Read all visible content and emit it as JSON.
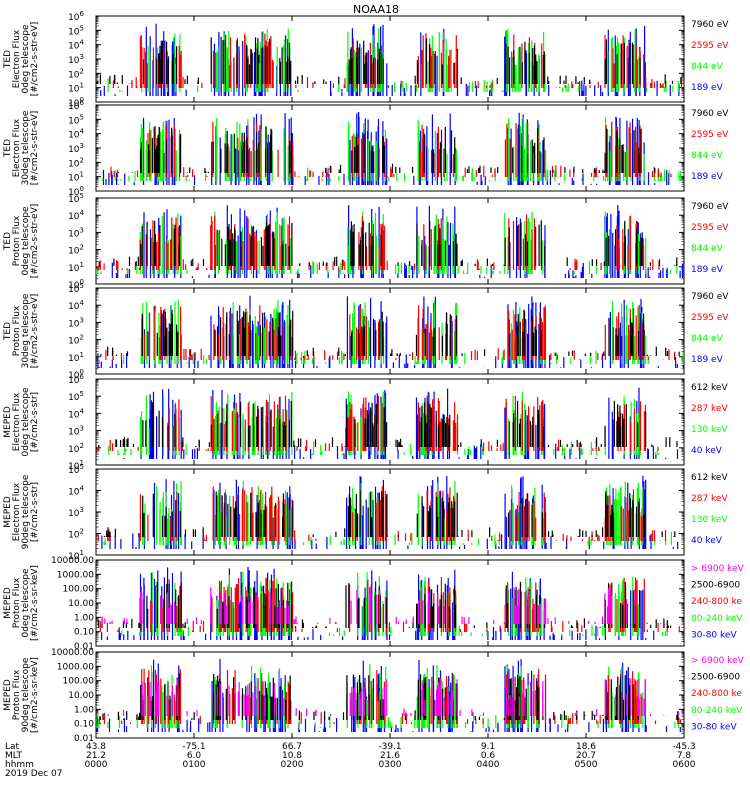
{
  "title": "NOAA18",
  "time_axis": {
    "rows": [
      {
        "label": "Lat",
        "values": [
          "43.8",
          "-75.1",
          "66.7",
          "-39.1",
          "9.1",
          "18.6",
          "-45.3"
        ]
      },
      {
        "label": "MLT",
        "values": [
          "21.2",
          "6.0",
          "10.8",
          "21.6",
          "0.6",
          "20.7",
          "7.8"
        ]
      },
      {
        "label": "hhmm",
        "values": [
          "0000",
          "0100",
          "0200",
          "0300",
          "0400",
          "0500",
          "0600"
        ]
      }
    ],
    "date": "2019 Dec 07"
  },
  "colors": {
    "blue": "#0000ff",
    "red": "#ff0000",
    "green": "#00ff00",
    "black": "#000000",
    "magenta": "#ff00ff",
    "frame": "#000000"
  },
  "chart_data": [
    {
      "type": "scatter",
      "ylabel": [
        "TED",
        "Electron Flux",
        "0deg telescope",
        "[#/cm2-s-str-eV]"
      ],
      "scale": "log",
      "ylim": [
        1,
        1000000
      ],
      "y_ticks": [
        {
          "value": 1,
          "base": "10",
          "exp": "0"
        },
        {
          "value": 10,
          "base": "10",
          "exp": "1"
        },
        {
          "value": 100,
          "base": "10",
          "exp": "2"
        },
        {
          "value": 1000,
          "base": "10",
          "exp": "3"
        },
        {
          "value": 10000,
          "base": "10",
          "exp": "4"
        },
        {
          "value": 100000,
          "base": "10",
          "exp": "5"
        },
        {
          "value": 1000000,
          "base": "10",
          "exp": "6"
        }
      ],
      "legend": [
        {
          "label": "7960 eV",
          "color": "#000000"
        },
        {
          "label": "2595 eV",
          "color": "#ff0000"
        },
        {
          "label": "844 eV",
          "color": "#00ff00"
        },
        {
          "label": "189 eV",
          "color": "#0000ff"
        }
      ]
    },
    {
      "type": "scatter",
      "ylabel": [
        "TED",
        "Electron Flux",
        "30deg telescope",
        "[#/cm2-s-str-eV]"
      ],
      "scale": "log",
      "ylim": [
        1,
        1000000
      ],
      "y_ticks": [
        {
          "value": 1,
          "base": "10",
          "exp": "0"
        },
        {
          "value": 10,
          "base": "10",
          "exp": "1"
        },
        {
          "value": 100,
          "base": "10",
          "exp": "2"
        },
        {
          "value": 1000,
          "base": "10",
          "exp": "3"
        },
        {
          "value": 10000,
          "base": "10",
          "exp": "4"
        },
        {
          "value": 100000,
          "base": "10",
          "exp": "5"
        },
        {
          "value": 1000000,
          "base": "10",
          "exp": "6"
        }
      ],
      "legend": [
        {
          "label": "7960 eV",
          "color": "#000000"
        },
        {
          "label": "2595 eV",
          "color": "#ff0000"
        },
        {
          "label": "844 eV",
          "color": "#00ff00"
        },
        {
          "label": "189 eV",
          "color": "#0000ff"
        }
      ]
    },
    {
      "type": "scatter",
      "ylabel": [
        "TED",
        "Proton Flux",
        "0deg telescope",
        "[#/cm2-s-str-eV]"
      ],
      "scale": "log",
      "ylim": [
        1,
        100000
      ],
      "y_ticks": [
        {
          "value": 1,
          "base": "10",
          "exp": "0"
        },
        {
          "value": 10,
          "base": "10",
          "exp": "1"
        },
        {
          "value": 100,
          "base": "10",
          "exp": "2"
        },
        {
          "value": 1000,
          "base": "10",
          "exp": "3"
        },
        {
          "value": 10000,
          "base": "10",
          "exp": "4"
        },
        {
          "value": 100000,
          "base": "10",
          "exp": "5"
        }
      ],
      "legend": [
        {
          "label": "7960 eV",
          "color": "#000000"
        },
        {
          "label": "2595 eV",
          "color": "#ff0000"
        },
        {
          "label": "844 eV",
          "color": "#00ff00"
        },
        {
          "label": "189 eV",
          "color": "#0000ff"
        }
      ]
    },
    {
      "type": "scatter",
      "ylabel": [
        "TED",
        "Proton Flux",
        "30deg telescope",
        "[#/cm2-s-str-eV]"
      ],
      "scale": "log",
      "ylim": [
        1,
        100000
      ],
      "y_ticks": [
        {
          "value": 1,
          "base": "10",
          "exp": "0"
        },
        {
          "value": 10,
          "base": "10",
          "exp": "1"
        },
        {
          "value": 100,
          "base": "10",
          "exp": "2"
        },
        {
          "value": 1000,
          "base": "10",
          "exp": "3"
        },
        {
          "value": 10000,
          "base": "10",
          "exp": "4"
        },
        {
          "value": 100000,
          "base": "10",
          "exp": "5"
        }
      ],
      "legend": [
        {
          "label": "7960 eV",
          "color": "#000000"
        },
        {
          "label": "2595 eV",
          "color": "#ff0000"
        },
        {
          "label": "844 eV",
          "color": "#00ff00"
        },
        {
          "label": "189 eV",
          "color": "#0000ff"
        }
      ]
    },
    {
      "type": "scatter",
      "ylabel": [
        "MEPED",
        "Electron Flux",
        "0deg telescope",
        "[#/cm2-s-str]"
      ],
      "scale": "log",
      "ylim": [
        10,
        1000000
      ],
      "y_ticks": [
        {
          "value": 10,
          "base": "10",
          "exp": "1"
        },
        {
          "value": 100,
          "base": "10",
          "exp": "2"
        },
        {
          "value": 1000,
          "base": "10",
          "exp": "3"
        },
        {
          "value": 10000,
          "base": "10",
          "exp": "4"
        },
        {
          "value": 100000,
          "base": "10",
          "exp": "5"
        },
        {
          "value": 1000000,
          "base": "10",
          "exp": "6"
        }
      ],
      "legend": [
        {
          "label": "612 keV",
          "color": "#000000"
        },
        {
          "label": "287 keV",
          "color": "#ff0000"
        },
        {
          "label": "130 keV",
          "color": "#00ff00"
        },
        {
          "label": "40 keV",
          "color": "#0000ff"
        }
      ]
    },
    {
      "type": "scatter",
      "ylabel": [
        "MEPED",
        "Electron Flux",
        "90deg telescope",
        "[#/cm2-s-str]"
      ],
      "scale": "log",
      "ylim": [
        10,
        100000
      ],
      "y_ticks": [
        {
          "value": 10,
          "base": "10",
          "exp": "1"
        },
        {
          "value": 100,
          "base": "10",
          "exp": "2"
        },
        {
          "value": 1000,
          "base": "10",
          "exp": "3"
        },
        {
          "value": 10000,
          "base": "10",
          "exp": "4"
        },
        {
          "value": 100000,
          "base": "10",
          "exp": "5"
        }
      ],
      "legend": [
        {
          "label": "612 keV",
          "color": "#000000"
        },
        {
          "label": "287 keV",
          "color": "#ff0000"
        },
        {
          "label": "130 keV",
          "color": "#00ff00"
        },
        {
          "label": "40 keV",
          "color": "#0000ff"
        }
      ]
    },
    {
      "type": "scatter",
      "ylabel": [
        "MEPED",
        "Proton Flux",
        "0deg telescope",
        "[#/cm2-s-sr-keV]"
      ],
      "scale": "log",
      "ylim": [
        0.01,
        10000
      ],
      "y_ticks": [
        {
          "value": 0.01,
          "label": "0.01"
        },
        {
          "value": 0.1,
          "label": "0.10"
        },
        {
          "value": 1,
          "label": "1.00"
        },
        {
          "value": 10,
          "label": "10.00"
        },
        {
          "value": 100,
          "label": "100.00"
        },
        {
          "value": 1000,
          "label": "1000.00"
        },
        {
          "value": 10000,
          "label": "10000.00"
        }
      ],
      "legend": [
        {
          "label": "> 6900 keV",
          "color": "#ff00ff"
        },
        {
          "label": "2500-6900",
          "color": "#000000"
        },
        {
          "label": "240-800 ke",
          "color": "#ff0000"
        },
        {
          "label": "80-240 keV",
          "color": "#00ff00"
        },
        {
          "label": "30-80 keV",
          "color": "#0000ff"
        }
      ]
    },
    {
      "type": "scatter",
      "ylabel": [
        "MEPED",
        "Proton Flux",
        "90deg telescope",
        "[#/cm2-s-sr-keV]"
      ],
      "scale": "log",
      "ylim": [
        0.01,
        10000
      ],
      "y_ticks": [
        {
          "value": 0.01,
          "label": "0.01"
        },
        {
          "value": 0.1,
          "label": "0.10"
        },
        {
          "value": 1,
          "label": "1.00"
        },
        {
          "value": 10,
          "label": "10.00"
        },
        {
          "value": 100,
          "label": "100.00"
        },
        {
          "value": 1000,
          "label": "1000.00"
        },
        {
          "value": 10000,
          "label": "10000.00"
        }
      ],
      "legend": [
        {
          "label": "> 6900 keV",
          "color": "#ff00ff"
        },
        {
          "label": "2500-6900",
          "color": "#000000"
        },
        {
          "label": "240-800 ke",
          "color": "#ff0000"
        },
        {
          "label": "80-240 keV",
          "color": "#00ff00"
        },
        {
          "label": "30-80 keV",
          "color": "#0000ff"
        }
      ]
    }
  ]
}
